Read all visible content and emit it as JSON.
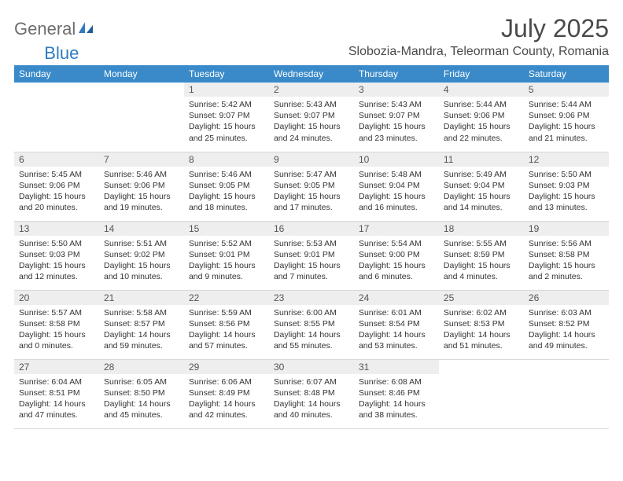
{
  "brand": {
    "general": "General",
    "blue": "Blue"
  },
  "title": "July 2025",
  "location": "Slobozia-Mandra, Teleorman County, Romania",
  "day_headers": [
    "Sunday",
    "Monday",
    "Tuesday",
    "Wednesday",
    "Thursday",
    "Friday",
    "Saturday"
  ],
  "colors": {
    "header_bg": "#3a8ac9",
    "header_text": "#ffffff",
    "daynum_bg": "#eeeeee",
    "text": "#333333",
    "brand_gray": "#6d6d6d",
    "brand_blue": "#2f7bbf"
  },
  "weeks": [
    [
      null,
      null,
      {
        "n": "1",
        "sunrise": "5:42 AM",
        "sunset": "9:07 PM",
        "daylight": "15 hours and 25 minutes."
      },
      {
        "n": "2",
        "sunrise": "5:43 AM",
        "sunset": "9:07 PM",
        "daylight": "15 hours and 24 minutes."
      },
      {
        "n": "3",
        "sunrise": "5:43 AM",
        "sunset": "9:07 PM",
        "daylight": "15 hours and 23 minutes."
      },
      {
        "n": "4",
        "sunrise": "5:44 AM",
        "sunset": "9:06 PM",
        "daylight": "15 hours and 22 minutes."
      },
      {
        "n": "5",
        "sunrise": "5:44 AM",
        "sunset": "9:06 PM",
        "daylight": "15 hours and 21 minutes."
      }
    ],
    [
      {
        "n": "6",
        "sunrise": "5:45 AM",
        "sunset": "9:06 PM",
        "daylight": "15 hours and 20 minutes."
      },
      {
        "n": "7",
        "sunrise": "5:46 AM",
        "sunset": "9:06 PM",
        "daylight": "15 hours and 19 minutes."
      },
      {
        "n": "8",
        "sunrise": "5:46 AM",
        "sunset": "9:05 PM",
        "daylight": "15 hours and 18 minutes."
      },
      {
        "n": "9",
        "sunrise": "5:47 AM",
        "sunset": "9:05 PM",
        "daylight": "15 hours and 17 minutes."
      },
      {
        "n": "10",
        "sunrise": "5:48 AM",
        "sunset": "9:04 PM",
        "daylight": "15 hours and 16 minutes."
      },
      {
        "n": "11",
        "sunrise": "5:49 AM",
        "sunset": "9:04 PM",
        "daylight": "15 hours and 14 minutes."
      },
      {
        "n": "12",
        "sunrise": "5:50 AM",
        "sunset": "9:03 PM",
        "daylight": "15 hours and 13 minutes."
      }
    ],
    [
      {
        "n": "13",
        "sunrise": "5:50 AM",
        "sunset": "9:03 PM",
        "daylight": "15 hours and 12 minutes."
      },
      {
        "n": "14",
        "sunrise": "5:51 AM",
        "sunset": "9:02 PM",
        "daylight": "15 hours and 10 minutes."
      },
      {
        "n": "15",
        "sunrise": "5:52 AM",
        "sunset": "9:01 PM",
        "daylight": "15 hours and 9 minutes."
      },
      {
        "n": "16",
        "sunrise": "5:53 AM",
        "sunset": "9:01 PM",
        "daylight": "15 hours and 7 minutes."
      },
      {
        "n": "17",
        "sunrise": "5:54 AM",
        "sunset": "9:00 PM",
        "daylight": "15 hours and 6 minutes."
      },
      {
        "n": "18",
        "sunrise": "5:55 AM",
        "sunset": "8:59 PM",
        "daylight": "15 hours and 4 minutes."
      },
      {
        "n": "19",
        "sunrise": "5:56 AM",
        "sunset": "8:58 PM",
        "daylight": "15 hours and 2 minutes."
      }
    ],
    [
      {
        "n": "20",
        "sunrise": "5:57 AM",
        "sunset": "8:58 PM",
        "daylight": "15 hours and 0 minutes."
      },
      {
        "n": "21",
        "sunrise": "5:58 AM",
        "sunset": "8:57 PM",
        "daylight": "14 hours and 59 minutes."
      },
      {
        "n": "22",
        "sunrise": "5:59 AM",
        "sunset": "8:56 PM",
        "daylight": "14 hours and 57 minutes."
      },
      {
        "n": "23",
        "sunrise": "6:00 AM",
        "sunset": "8:55 PM",
        "daylight": "14 hours and 55 minutes."
      },
      {
        "n": "24",
        "sunrise": "6:01 AM",
        "sunset": "8:54 PM",
        "daylight": "14 hours and 53 minutes."
      },
      {
        "n": "25",
        "sunrise": "6:02 AM",
        "sunset": "8:53 PM",
        "daylight": "14 hours and 51 minutes."
      },
      {
        "n": "26",
        "sunrise": "6:03 AM",
        "sunset": "8:52 PM",
        "daylight": "14 hours and 49 minutes."
      }
    ],
    [
      {
        "n": "27",
        "sunrise": "6:04 AM",
        "sunset": "8:51 PM",
        "daylight": "14 hours and 47 minutes."
      },
      {
        "n": "28",
        "sunrise": "6:05 AM",
        "sunset": "8:50 PM",
        "daylight": "14 hours and 45 minutes."
      },
      {
        "n": "29",
        "sunrise": "6:06 AM",
        "sunset": "8:49 PM",
        "daylight": "14 hours and 42 minutes."
      },
      {
        "n": "30",
        "sunrise": "6:07 AM",
        "sunset": "8:48 PM",
        "daylight": "14 hours and 40 minutes."
      },
      {
        "n": "31",
        "sunrise": "6:08 AM",
        "sunset": "8:46 PM",
        "daylight": "14 hours and 38 minutes."
      },
      null,
      null
    ]
  ],
  "labels": {
    "sunrise": "Sunrise: ",
    "sunset": "Sunset: ",
    "daylight": "Daylight: "
  }
}
